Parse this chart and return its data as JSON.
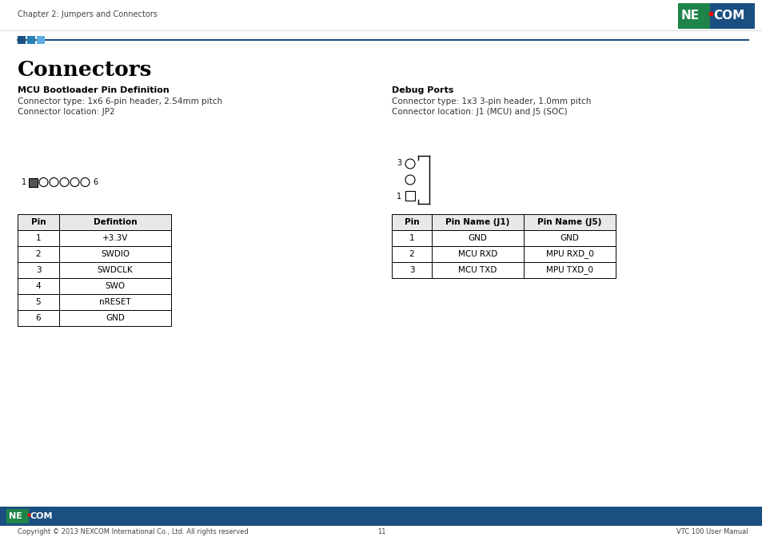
{
  "page_title": "Connectors",
  "header_text": "Chapter 2: Jumpers and Connectors",
  "left_section_title": "MCU Bootloader Pin Definition",
  "left_desc1": "Connector type: 1x6 6-pin header, 2.54mm pitch",
  "left_desc2": "Connector location: JP2",
  "right_section_title": "Debug Ports",
  "right_desc1": "Connector type: 1x3 3-pin header, 1.0mm pitch",
  "right_desc2": "Connector location: J1 (MCU) and J5 (SOC)",
  "left_table_headers": [
    "Pin",
    "Defintion"
  ],
  "left_table_data": [
    [
      "1",
      "+3.3V"
    ],
    [
      "2",
      "SWDIO"
    ],
    [
      "3",
      "SWDCLK"
    ],
    [
      "4",
      "SWO"
    ],
    [
      "5",
      "nRESET"
    ],
    [
      "6",
      "GND"
    ]
  ],
  "right_table_headers": [
    "Pin",
    "Pin Name (J1)",
    "Pin Name (J5)"
  ],
  "right_table_data": [
    [
      "1",
      "GND",
      "GND"
    ],
    [
      "2",
      "MCU RXD",
      "MPU RXD_0"
    ],
    [
      "3",
      "MCU TXD",
      "MPU TXD_0"
    ]
  ],
  "footer_copyright": "Copyright © 2013 NEXCOM International Co., Ltd. All rights reserved",
  "footer_page": "11",
  "footer_right": "VTC 100 User Manual",
  "nexcom_green": "#1e8449",
  "nexcom_blue": "#1b4f82",
  "footer_blue": "#1b4f82",
  "table_header_bg": "#e8e8e8",
  "line_color": "#1b4f82",
  "sq_colors": [
    "#1b4f82",
    "#2980b9",
    "#5dade2"
  ]
}
